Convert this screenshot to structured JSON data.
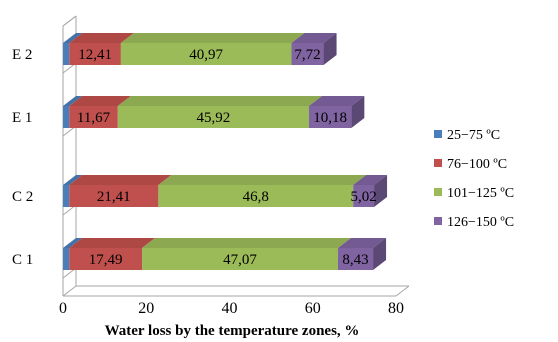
{
  "chart_data": {
    "type": "bar",
    "orientation": "horizontal",
    "stacked": true,
    "three_d": true,
    "categories": [
      "C 1",
      "C 2",
      "E 1",
      "E 2"
    ],
    "series": [
      {
        "name": "25−75 ºC",
        "color": "#4a7ebb",
        "values": [
          1.5,
          1.5,
          1.5,
          1.5
        ]
      },
      {
        "name": "76−100 ºC",
        "color": "#c0504d",
        "values": [
          17.49,
          21.41,
          11.67,
          12.41
        ]
      },
      {
        "name": "101−125 ºC",
        "color": "#9bbb59",
        "values": [
          47.07,
          46.8,
          45.92,
          40.97
        ]
      },
      {
        "name": "126−150 ºC",
        "color": "#8064a2",
        "values": [
          8.43,
          5.02,
          10.18,
          7.72
        ]
      }
    ],
    "data_labels": [
      {
        "category": "C 1",
        "series": 1,
        "text": "17,49"
      },
      {
        "category": "C 1",
        "series": 2,
        "text": "47,07"
      },
      {
        "category": "C 1",
        "series": 3,
        "text": "8,43"
      },
      {
        "category": "C 2",
        "series": 1,
        "text": "21,41"
      },
      {
        "category": "C 2",
        "series": 2,
        "text": "46,8"
      },
      {
        "category": "C 2",
        "series": 3,
        "text": "5,02"
      },
      {
        "category": "E 1",
        "series": 1,
        "text": "11,67"
      },
      {
        "category": "E 1",
        "series": 2,
        "text": "45,92"
      },
      {
        "category": "E 1",
        "series": 3,
        "text": "10,18"
      },
      {
        "category": "E 2",
        "series": 1,
        "text": "12,41"
      },
      {
        "category": "E 2",
        "series": 2,
        "text": "40,97"
      },
      {
        "category": "E 2",
        "series": 3,
        "text": "7,72"
      }
    ],
    "xlabel": "Water loss by the temperature zones, %",
    "xlim": [
      0,
      80
    ],
    "xticks": [
      "0",
      "20",
      "40",
      "60",
      "80"
    ],
    "legend_position": "right"
  }
}
